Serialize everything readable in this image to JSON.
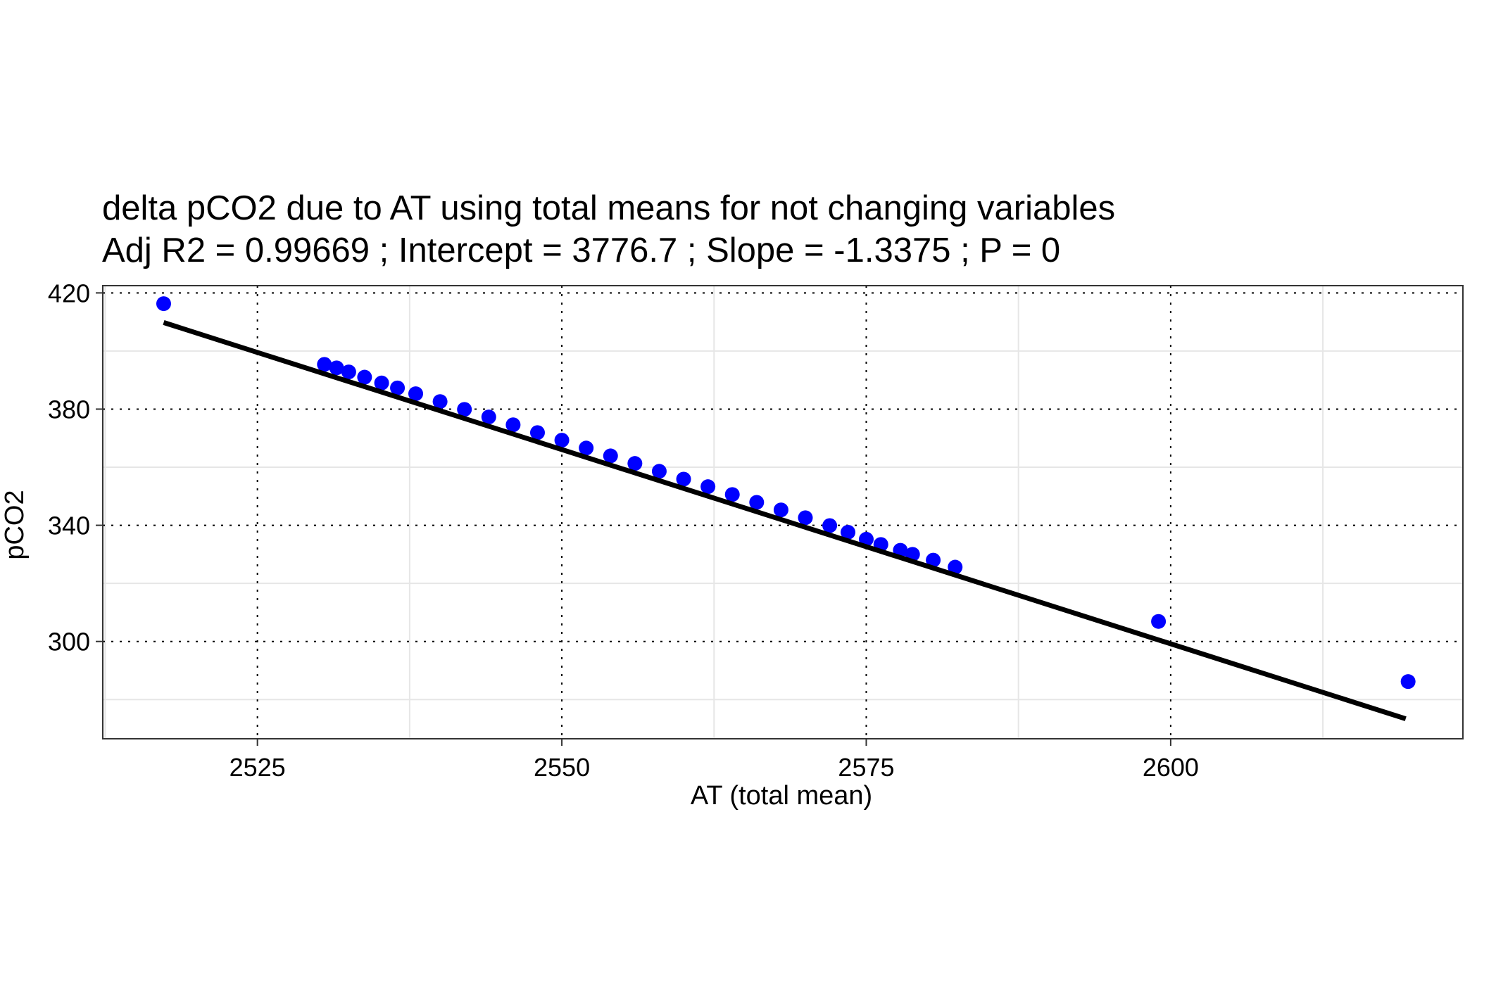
{
  "chart_data": {
    "type": "scatter",
    "title": "delta pCO2 due to AT using total means for not changing variables",
    "subtitle": "Adj R2 =  0.99669 ; Intercept = 3776.7 ; Slope = -1.3375 ; P = 0",
    "xlabel": "AT (total mean)",
    "ylabel": "pCO2",
    "xlim": [
      2512.3,
      2624
    ],
    "ylim": [
      266.5,
      422.5
    ],
    "x_ticks": [
      2525,
      2550,
      2575,
      2600
    ],
    "y_ticks": [
      300,
      340,
      380,
      420
    ],
    "x_tick_labels": [
      "2525",
      "2550",
      "2575",
      "2600"
    ],
    "y_tick_labels": [
      "300",
      "340",
      "380",
      "420"
    ],
    "grid": true,
    "legend": "none",
    "regression": {
      "intercept": 3776.7,
      "slope": -1.3375,
      "x_range": [
        2517.3,
        2619.3
      ]
    },
    "points_color": "#0000ff",
    "line_color": "#000000",
    "points": {
      "x": [
        2517.3,
        2530.5,
        2531.5,
        2532.5,
        2533.8,
        2535.2,
        2536.5,
        2538.0,
        2540.0,
        2542.0,
        2544.0,
        2546.0,
        2548.0,
        2550.0,
        2552.0,
        2554.0,
        2556.0,
        2558.0,
        2560.0,
        2562.0,
        2564.0,
        2566.0,
        2568.0,
        2570.0,
        2572.0,
        2573.5,
        2575.0,
        2576.2,
        2577.8,
        2578.8,
        2580.5,
        2582.3,
        2599.0,
        2619.5
      ],
      "y": [
        416.3,
        395.4,
        394.2,
        392.8,
        391.0,
        389.0,
        387.3,
        385.3,
        382.6,
        379.9,
        377.3,
        374.6,
        371.9,
        369.3,
        366.6,
        363.9,
        361.3,
        358.6,
        355.9,
        353.3,
        350.6,
        347.9,
        345.3,
        342.6,
        339.9,
        337.6,
        335.2,
        333.4,
        331.4,
        330.0,
        328.0,
        325.6,
        306.9,
        286.2
      ]
    }
  }
}
